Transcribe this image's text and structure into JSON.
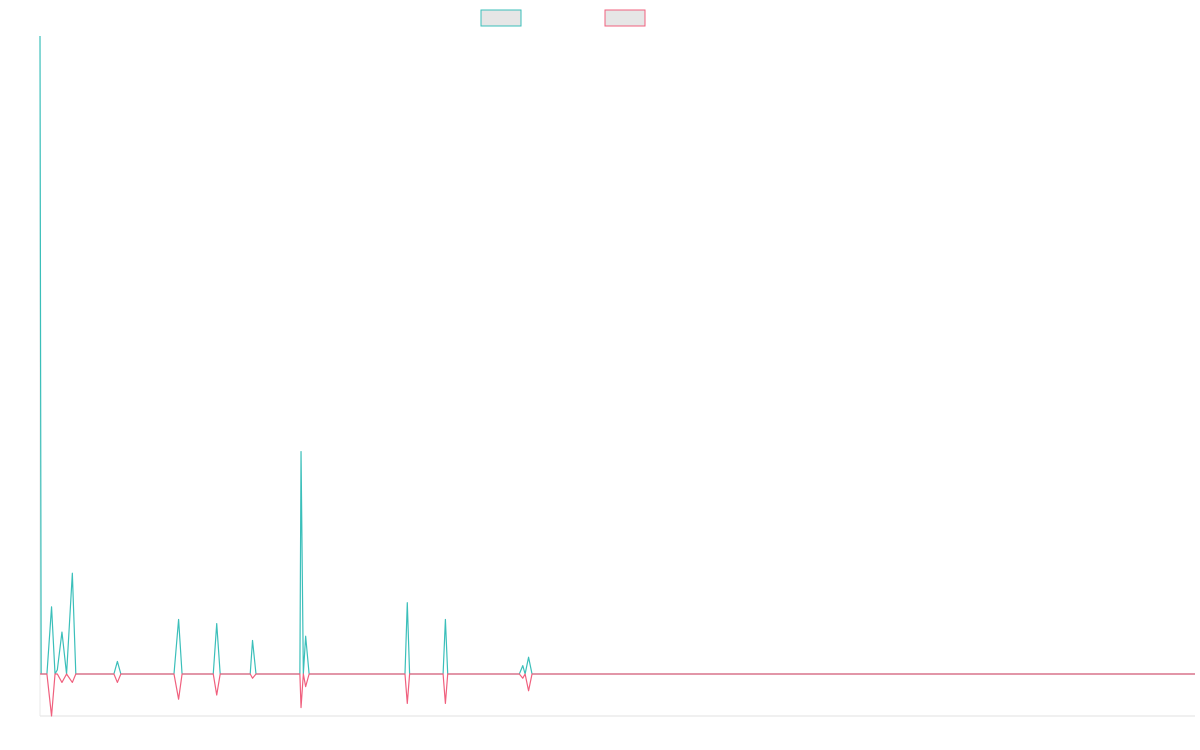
{
  "chart_data": {
    "type": "line",
    "title": "",
    "xlabel": "",
    "ylabel": "",
    "legend_position": "top-center",
    "grid": false,
    "ylim": [
      -5,
      76
    ],
    "xlim": [
      0,
      1000
    ],
    "series": [
      {
        "color": "#3bbfba",
        "points": [
          [
            0,
            76
          ],
          [
            1,
            0
          ],
          [
            6,
            0
          ],
          [
            10,
            8
          ],
          [
            13,
            0
          ],
          [
            15,
            0.5
          ],
          [
            19,
            5
          ],
          [
            23,
            0
          ],
          [
            28,
            12
          ],
          [
            31,
            0
          ],
          [
            64,
            0
          ],
          [
            67,
            1.5
          ],
          [
            70,
            0
          ],
          [
            116,
            0
          ],
          [
            120,
            6.5
          ],
          [
            123,
            0
          ],
          [
            150,
            0
          ],
          [
            153,
            6
          ],
          [
            156,
            0
          ],
          [
            182,
            0
          ],
          [
            184,
            4
          ],
          [
            187,
            0
          ],
          [
            225,
            0
          ],
          [
            226,
            26.5
          ],
          [
            228,
            0
          ],
          [
            230,
            4.5
          ],
          [
            233,
            0
          ],
          [
            316,
            0
          ],
          [
            318,
            8.5
          ],
          [
            320,
            0
          ],
          [
            349,
            0
          ],
          [
            351,
            6.5
          ],
          [
            353,
            0
          ],
          [
            415,
            0
          ],
          [
            418,
            1
          ],
          [
            420,
            0
          ],
          [
            423,
            2
          ],
          [
            426,
            0
          ],
          [
            1000,
            0
          ]
        ]
      },
      {
        "color": "#f0607e",
        "points": [
          [
            0,
            0
          ],
          [
            6,
            0
          ],
          [
            10,
            -5
          ],
          [
            13,
            0
          ],
          [
            15,
            0
          ],
          [
            19,
            -1
          ],
          [
            23,
            0
          ],
          [
            28,
            -1
          ],
          [
            31,
            0
          ],
          [
            64,
            0
          ],
          [
            67,
            -1
          ],
          [
            70,
            0
          ],
          [
            116,
            0
          ],
          [
            120,
            -3
          ],
          [
            123,
            0
          ],
          [
            150,
            0
          ],
          [
            153,
            -2.5
          ],
          [
            156,
            0
          ],
          [
            182,
            0
          ],
          [
            184,
            -0.5
          ],
          [
            187,
            0
          ],
          [
            225,
            0
          ],
          [
            226,
            -4
          ],
          [
            228,
            0
          ],
          [
            230,
            -1.5
          ],
          [
            233,
            0
          ],
          [
            316,
            0
          ],
          [
            318,
            -3.5
          ],
          [
            320,
            0
          ],
          [
            349,
            0
          ],
          [
            351,
            -3.5
          ],
          [
            353,
            0
          ],
          [
            415,
            0
          ],
          [
            418,
            -0.5
          ],
          [
            420,
            0
          ],
          [
            423,
            -2
          ],
          [
            426,
            0
          ],
          [
            1000,
            0
          ]
        ]
      }
    ]
  }
}
